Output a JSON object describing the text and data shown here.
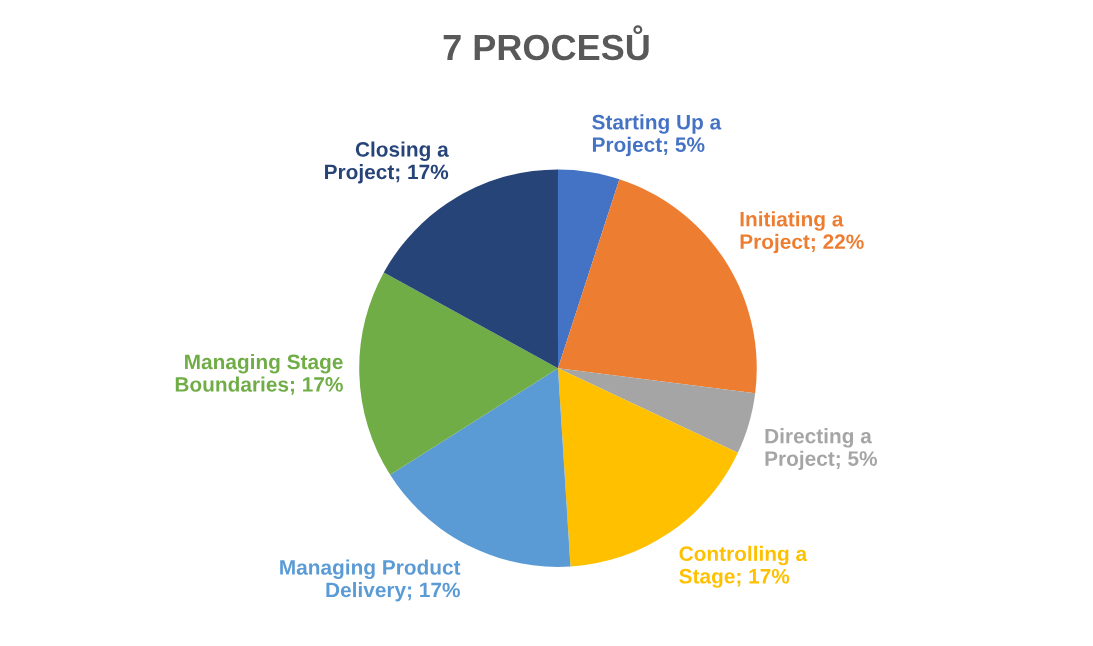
{
  "chart_data": {
    "type": "pie",
    "title": "7 PROCESŮ",
    "categories": [
      "Starting Up a Project",
      "Initiating a Project",
      "Directing a Project",
      "Controlling a Stage",
      "Managing Product Delivery",
      "Managing Stage Boundaries",
      "Closing a Project"
    ],
    "values": [
      5,
      22,
      5,
      17,
      17,
      17,
      17
    ],
    "value_labels": [
      "5%",
      "22%",
      "5%",
      "17%",
      "17%",
      "17%",
      "17%"
    ],
    "colors": [
      "#4472c4",
      "#ed7d31",
      "#a5a5a5",
      "#ffc000",
      "#5b9bd5",
      "#70ad47",
      "#264478"
    ],
    "legend": false
  }
}
